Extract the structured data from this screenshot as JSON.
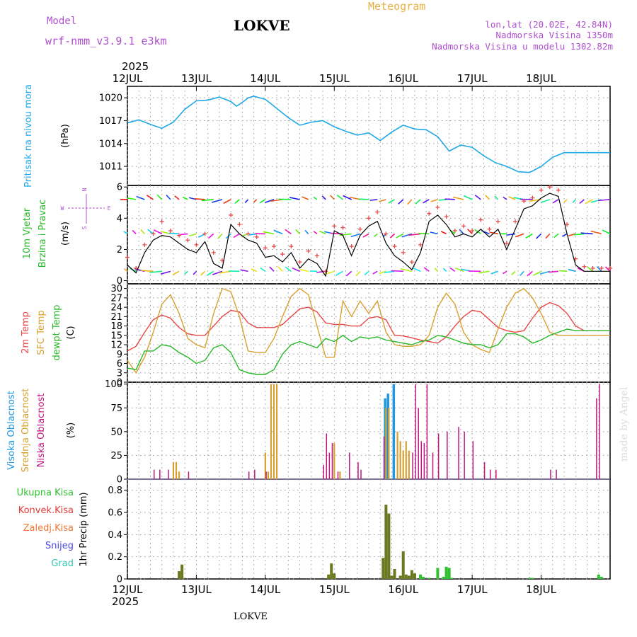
{
  "header": {
    "model_label": "Model",
    "model_name": "wrf-nmm_v3.9.1 e3km",
    "location": "LOKVE",
    "product": "Meteogram",
    "coords": "lon,lat (20.02E, 42.84N)",
    "elevation": "Nadmorska Visina 1350m",
    "model_elevation": "Nadmorska Visina u modelu 1302.82m",
    "year_top": "2025",
    "year_bottom": "2025",
    "footer_location": "LOKVE",
    "credit": "made by Angel"
  },
  "colors": {
    "purple": "#b050d0",
    "orange": "#e8b040",
    "pressure": "#20a8e8",
    "temp2m": "#e84848",
    "sfc": "#d8a030",
    "dewpt": "#28b828",
    "high_cloud": "#2098e0",
    "mid_cloud": "#d8a030",
    "low_cloud": "#c01880",
    "total_precip": "#30c030",
    "convective": "#e83838",
    "frozen": "#f07830",
    "snow": "#4848e8",
    "hail": "#30c8b0",
    "precip_bar": "#6a7a20"
  },
  "chart_data": [
    {
      "type": "line",
      "panel": "pressure",
      "title": "Pritisak na nivou mora",
      "ylabel": "(hPa)",
      "ylim": [
        1008.5,
        1021.5
      ],
      "yticks": [
        1011,
        1014,
        1017,
        1020
      ],
      "x_hours": [
        0,
        4,
        8,
        12,
        16,
        20,
        24,
        28,
        32,
        36,
        38,
        40,
        42,
        44,
        48,
        52,
        56,
        60,
        64,
        68,
        72,
        76,
        80,
        84,
        88,
        92,
        96,
        100,
        104,
        108,
        112,
        116,
        120,
        124,
        128,
        132,
        136,
        140,
        144,
        148,
        152,
        156,
        160,
        164,
        168
      ],
      "values": [
        1016.7,
        1017.1,
        1016.5,
        1016.0,
        1016.8,
        1018.5,
        1019.6,
        1019.7,
        1020.1,
        1019.5,
        1018.9,
        1019.4,
        1020.0,
        1020.2,
        1019.8,
        1018.6,
        1017.4,
        1016.4,
        1016.8,
        1017.0,
        1016.2,
        1015.6,
        1015.1,
        1015.4,
        1014.4,
        1015.5,
        1016.4,
        1015.9,
        1015.8,
        1014.9,
        1013.0,
        1013.8,
        1013.5,
        1012.4,
        1011.5,
        1011.0,
        1010.3,
        1010.2,
        1011.0,
        1012.2,
        1012.8,
        1012.8,
        1012.8,
        1012.8,
        1012.8
      ],
      "legend": [
        "Pritisak na nivou mora"
      ]
    },
    {
      "type": "scatter",
      "panel": "wind",
      "ylabel": "(m/s)",
      "ylim": [
        -0.2,
        6.1
      ],
      "yticks": [
        0,
        2,
        4,
        6
      ],
      "legend": [
        "10m Vjetar",
        "Brzina i Pravac"
      ],
      "compass": [
        "N",
        "S",
        "W",
        "E"
      ],
      "x_hours": [
        0,
        3,
        6,
        9,
        12,
        15,
        18,
        21,
        24,
        27,
        30,
        33,
        36,
        39,
        42,
        45,
        48,
        51,
        54,
        57,
        60,
        63,
        66,
        69,
        72,
        75,
        78,
        81,
        84,
        87,
        90,
        93,
        96,
        99,
        102,
        105,
        108,
        111,
        114,
        117,
        120,
        123,
        126,
        129,
        132,
        135,
        138,
        141,
        144,
        147,
        150,
        153,
        156,
        159,
        162,
        165,
        168
      ],
      "speed_10m": [
        1.0,
        0.5,
        1.8,
        2.6,
        2.9,
        2.8,
        2.4,
        2.0,
        1.8,
        2.5,
        1.1,
        0.8,
        3.6,
        3.0,
        2.6,
        2.4,
        1.5,
        1.6,
        1.2,
        1.8,
        0.8,
        1.4,
        1.1,
        0.3,
        3.2,
        2.9,
        1.6,
        2.9,
        3.5,
        3.8,
        2.4,
        1.6,
        1.2,
        0.7,
        1.8,
        3.8,
        4.2,
        3.6,
        2.8,
        3.0,
        2.8,
        3.3,
        2.8,
        3.3,
        2.0,
        3.3,
        4.6,
        4.8,
        5.3,
        5.6,
        5.4,
        3.0,
        1.0,
        0.6,
        0.6,
        0.6,
        0.6
      ],
      "gust": [
        1.5,
        0.8,
        2.3,
        3.0,
        3.8,
        3.2,
        2.9,
        2.6,
        2.3,
        3.0,
        1.8,
        1.3,
        4.2,
        3.6,
        3.0,
        2.8,
        2.1,
        2.2,
        1.7,
        2.2,
        1.2,
        1.9,
        1.6,
        0.6,
        3.5,
        3.4,
        2.2,
        3.3,
        4.0,
        4.4,
        3.0,
        2.2,
        1.8,
        1.2,
        2.3,
        4.3,
        4.7,
        4.1,
        3.2,
        3.5,
        3.2,
        3.9,
        3.3,
        3.8,
        2.4,
        3.8,
        5.1,
        5.3,
        5.8,
        6.0,
        5.8,
        3.6,
        1.4,
        0.9,
        0.8,
        0.8,
        0.8
      ]
    },
    {
      "type": "line",
      "panel": "temperature",
      "ylabel": "(C)",
      "ylim": [
        0,
        31.5
      ],
      "yticks": [
        0,
        3,
        6,
        9,
        12,
        15,
        18,
        21,
        24,
        27,
        30
      ],
      "legend": [
        "2m Temp",
        "SFC Temp",
        "dewpt Temp"
      ],
      "x_hours": [
        0,
        3,
        6,
        9,
        12,
        15,
        18,
        21,
        24,
        27,
        30,
        33,
        36,
        39,
        42,
        45,
        48,
        51,
        54,
        57,
        60,
        63,
        66,
        69,
        72,
        75,
        78,
        81,
        84,
        87,
        90,
        93,
        96,
        99,
        102,
        105,
        108,
        111,
        114,
        117,
        120,
        123,
        126,
        129,
        132,
        135,
        138,
        141,
        144,
        147,
        150,
        153,
        156,
        159,
        162,
        165,
        168
      ],
      "series": [
        {
          "name": "2m Temp",
          "values": [
            10,
            11.5,
            16,
            20,
            21.5,
            20.5,
            17.5,
            15.5,
            15,
            15,
            18,
            21,
            23,
            22.5,
            19,
            17.5,
            17.5,
            17.5,
            18.5,
            21,
            23.5,
            24,
            22.5,
            19,
            18.5,
            18.5,
            18,
            18,
            20.5,
            21,
            20,
            15,
            14.8,
            14.2,
            13.5,
            13,
            12.5,
            14.5,
            18,
            21,
            23,
            22.5,
            20,
            17.5,
            16.5,
            16,
            16.5,
            20.5,
            24,
            25.5,
            24.5,
            22,
            18,
            16.5,
            16.5,
            16.5,
            16.5
          ]
        },
        {
          "name": "SFC Temp",
          "values": [
            7,
            3,
            8,
            16,
            25,
            28,
            22,
            14,
            12,
            11,
            22,
            30,
            29,
            21,
            10,
            9.5,
            9.5,
            14,
            21,
            27.5,
            30,
            28,
            18,
            8,
            8,
            26,
            21,
            26,
            22,
            26,
            16,
            12,
            11.5,
            11.5,
            12,
            15,
            24,
            28.5,
            25,
            16,
            12,
            10.5,
            9.5,
            17,
            24,
            28.5,
            30,
            27,
            22,
            16,
            15,
            15,
            15,
            15,
            15,
            15,
            15
          ]
        },
        {
          "name": "dewpt Temp",
          "values": [
            4.5,
            4,
            10,
            10,
            12,
            11.5,
            9.5,
            8,
            6,
            7,
            11,
            12,
            9.5,
            4,
            3,
            2.5,
            2.5,
            4,
            9,
            12,
            13,
            12,
            11,
            14,
            13,
            15,
            13,
            14.5,
            14,
            14.5,
            13.5,
            13,
            12.5,
            12,
            13,
            13.5,
            15,
            14.5,
            13.5,
            12.5,
            12,
            12,
            11,
            12,
            15.5,
            15.5,
            14.5,
            12.5,
            13.5,
            15,
            16,
            17,
            16.5,
            16.5,
            16.5,
            16.5,
            16.5
          ]
        }
      ]
    },
    {
      "type": "bar",
      "panel": "clouds",
      "ylabel": "(%)",
      "ylim": [
        0,
        102
      ],
      "yticks": [
        0,
        25,
        50,
        75,
        100
      ],
      "legend": [
        "Visoka Oblacnost",
        "Srednja Oblacnost",
        "Niska Oblacnost"
      ],
      "x_hours": [
        9,
        11,
        14,
        16,
        17,
        18,
        19,
        21,
        42,
        44,
        48,
        49,
        50,
        51,
        52,
        68,
        69,
        70,
        71,
        72,
        73,
        74,
        77,
        80,
        81,
        88,
        89,
        90,
        91,
        92,
        93,
        94,
        95,
        96,
        97,
        98,
        99,
        100,
        101,
        102,
        103,
        104,
        106,
        108,
        111,
        115,
        117,
        120,
        124,
        126,
        128,
        147,
        149,
        163,
        164
      ],
      "series": [
        {
          "name": "Visoka Oblacnost",
          "values": [
            0,
            0,
            0,
            0,
            0,
            0,
            0,
            0,
            0,
            0,
            0,
            0,
            0,
            0,
            0,
            0,
            0,
            0,
            0,
            0,
            0,
            0,
            0,
            0,
            0,
            0,
            0,
            85,
            90,
            0,
            100,
            0,
            0,
            0,
            0,
            0,
            0,
            0,
            0,
            0,
            0,
            0,
            0,
            0,
            0,
            0,
            0,
            0,
            0,
            0,
            0,
            0,
            0,
            0,
            0
          ]
        },
        {
          "name": "Srednja Oblacnost",
          "values": [
            0,
            0,
            0,
            18,
            18,
            8,
            0,
            0,
            0,
            0,
            28,
            8,
            100,
            100,
            100,
            0,
            0,
            0,
            0,
            38,
            0,
            8,
            0,
            0,
            0,
            0,
            0,
            75,
            75,
            0,
            0,
            50,
            40,
            30,
            40,
            30,
            0,
            0,
            0,
            0,
            0,
            0,
            0,
            0,
            0,
            0,
            0,
            0,
            0,
            0,
            0,
            0,
            0,
            0,
            0
          ]
        },
        {
          "name": "Niska Oblacnost",
          "values": [
            10,
            10,
            10,
            0,
            0,
            0,
            0,
            8,
            8,
            10,
            8,
            0,
            0,
            0,
            0,
            15,
            48,
            28,
            38,
            0,
            8,
            0,
            28,
            18,
            10,
            0,
            45,
            0,
            0,
            0,
            0,
            0,
            0,
            0,
            0,
            0,
            28,
            100,
            75,
            40,
            38,
            100,
            28,
            48,
            50,
            55,
            50,
            40,
            18,
            10,
            10,
            10,
            10,
            85,
            100
          ]
        }
      ]
    },
    {
      "type": "bar",
      "panel": "precip",
      "ylabel": "1hr Precip (mm)",
      "ylim": [
        0,
        0.9
      ],
      "yticks": [
        0,
        0.2,
        0.4,
        0.6,
        0.8
      ],
      "legend": [
        "Ukupna Kisa",
        "Konvek.Kisa",
        "Zaledj.Kisa",
        "Snijeg",
        "Grad"
      ],
      "x_hours": [
        18,
        19,
        70,
        71,
        72,
        89,
        90,
        91,
        92,
        93,
        95,
        96,
        97,
        98,
        99,
        100,
        102,
        103,
        105,
        108,
        110,
        111,
        112,
        113,
        140,
        141,
        164,
        165
      ],
      "values": [
        0.07,
        0.13,
        0.04,
        0.14,
        0.05,
        0.19,
        0.67,
        0.59,
        0.03,
        0.09,
        0.03,
        0.25,
        0.04,
        0.03,
        0.08,
        0.05,
        0.04,
        0.02,
        0.01,
        0.1,
        0.02,
        0.11,
        0.1,
        0.01,
        0.01,
        0.01,
        0.04,
        0.02
      ]
    }
  ],
  "x_axis": {
    "range_hours": [
      0,
      168
    ],
    "tick_hours": [
      0,
      24,
      48,
      72,
      96,
      120,
      144,
      168
    ],
    "tick_labels": [
      "12JUL",
      "13JUL",
      "14JUL",
      "15JUL",
      "16JUL",
      "17JUL",
      "18JUL"
    ]
  }
}
